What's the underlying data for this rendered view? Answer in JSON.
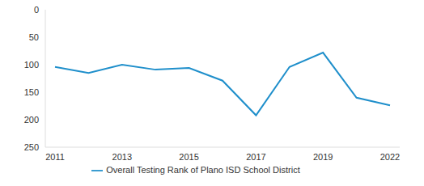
{
  "chart_data": {
    "type": "line",
    "categories": [
      "2011",
      null,
      "2013",
      null,
      "2015",
      null,
      "2017",
      null,
      "2019",
      null,
      "2022"
    ],
    "series": [
      {
        "name": "Overall Testing Rank of Plano ISD  School District",
        "color": "#1f8fcb",
        "values": [
          104,
          115,
          100,
          109,
          106,
          129,
          192,
          104,
          78,
          160,
          174
        ]
      }
    ],
    "ylim": [
      250,
      0
    ],
    "yticks": [
      0,
      50,
      100,
      150,
      200,
      250
    ],
    "grid": false,
    "legend": "bottom"
  }
}
